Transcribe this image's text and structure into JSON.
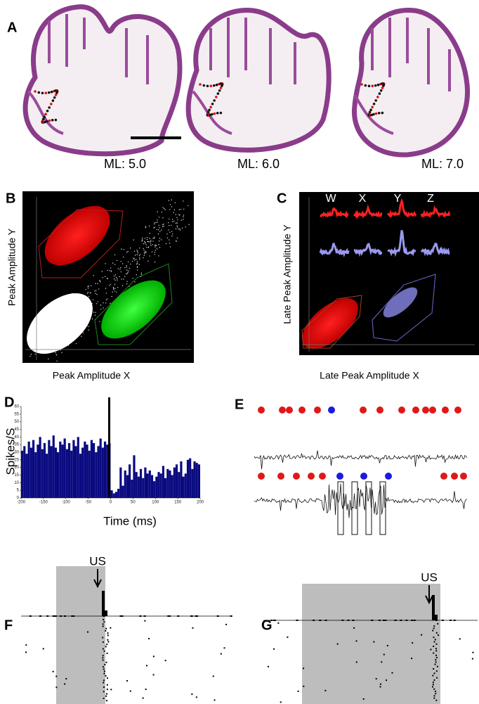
{
  "figure": {
    "panel_labels": [
      "A",
      "B",
      "C",
      "D",
      "E",
      "F",
      "G"
    ],
    "A": {
      "sections": [
        "ML: 5.0",
        "ML: 6.0",
        "ML: 7.0"
      ]
    },
    "B": {
      "y_label": "Peak Amplitude Y",
      "x_label": "Peak Amplitude X"
    },
    "C": {
      "y_label": "Late Peak Amplitude Y",
      "x_label": "Late Peak Amplitude X",
      "channels": [
        "W",
        "X",
        "Y",
        "Z"
      ]
    },
    "F": {
      "marker": "US"
    },
    "G": {
      "marker": "US"
    }
  },
  "chart_data": {
    "type": "histogram",
    "y_label": "Spikes/S",
    "x_label": "Time (ms)",
    "color": "#0a0a80",
    "bins": [
      -200,
      -195,
      -190,
      -185,
      -180,
      -175,
      -170,
      -165,
      -160,
      -155,
      -150,
      -145,
      -140,
      -135,
      -130,
      -125,
      -120,
      -115,
      -110,
      -105,
      -100,
      -95,
      -90,
      -85,
      -80,
      -75,
      -70,
      -65,
      -60,
      -55,
      -50,
      -45,
      -40,
      -35,
      -30,
      -25,
      -20,
      -15,
      -10,
      -5,
      0,
      5,
      10,
      15,
      20,
      25,
      30,
      35,
      40,
      45,
      50,
      55,
      60,
      65,
      70,
      75,
      80,
      85,
      90,
      95,
      100,
      105,
      110,
      115,
      120,
      125,
      130,
      135,
      140,
      145,
      150,
      155,
      160,
      165,
      170,
      175,
      180,
      185,
      190,
      195,
      200
    ],
    "values": [
      31,
      34,
      29,
      37,
      33,
      38,
      30,
      35,
      40,
      32,
      36,
      29,
      38,
      34,
      41,
      33,
      30,
      37,
      35,
      39,
      32,
      36,
      31,
      38,
      34,
      40,
      29,
      33,
      37,
      35,
      31,
      38,
      36,
      30,
      34,
      39,
      33,
      37,
      35,
      36,
      5,
      3,
      4,
      6,
      20,
      8,
      18,
      15,
      22,
      12,
      28,
      17,
      14,
      19,
      13,
      20,
      16,
      18,
      15,
      11,
      14,
      17,
      16,
      21,
      13,
      19,
      18,
      15,
      20,
      22,
      17,
      24,
      14,
      16,
      25,
      26,
      19,
      24,
      23,
      22
    ],
    "xlim": [
      -200,
      200
    ],
    "ylim": [
      0,
      60
    ],
    "xticks": [
      -200,
      -150,
      -100,
      -50,
      0,
      50,
      100,
      150,
      200
    ],
    "yticks": [
      0,
      5,
      10,
      15,
      20,
      25,
      30,
      35,
      40,
      45,
      50,
      55,
      60
    ]
  }
}
